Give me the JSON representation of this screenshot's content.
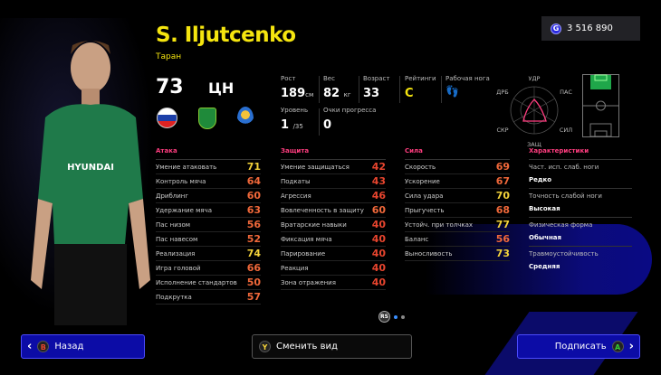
{
  "player": {
    "name": "S. Iljutcenko",
    "alias": "Таран",
    "overall": "73",
    "position": "ЦН",
    "nationality_flag": "russia-flag",
    "club_badge": "club-badge",
    "competition_badge": "champions-league-badge"
  },
  "currency": {
    "icon": "g-coin-icon",
    "amount": "3 516 890"
  },
  "info": {
    "height_label": "Рост",
    "height": "189",
    "height_unit": "см",
    "weight_label": "Вес",
    "weight": "82",
    "weight_unit": "кг",
    "age_label": "Возраст",
    "age": "33",
    "rating_label": "Рейтинги",
    "rating": "C",
    "foot_label": "Рабочая нога",
    "foot_icon": "footprints-icon",
    "level_label": "Уровень",
    "level": "1",
    "level_max": "/35",
    "progress_label": "Очки прогресса",
    "progress": "0"
  },
  "radar": {
    "labels": [
      "УДР",
      "ПАС",
      "СИЛ",
      "ЗАЩ",
      "СКР",
      "ДРБ"
    ],
    "color": "#ff3d7f"
  },
  "attack": {
    "title": "Атака",
    "rows": [
      {
        "label": "Умение атаковать",
        "value": "71"
      },
      {
        "label": "Контроль мяча",
        "value": "64"
      },
      {
        "label": "Дриблинг",
        "value": "60"
      },
      {
        "label": "Удержание мяча",
        "value": "63"
      },
      {
        "label": "Пас низом",
        "value": "56"
      },
      {
        "label": "Пас навесом",
        "value": "52"
      },
      {
        "label": "Реализация",
        "value": "74"
      },
      {
        "label": "Игра головой",
        "value": "66"
      },
      {
        "label": "Исполнение стандартов",
        "value": "50"
      },
      {
        "label": "Подкрутка",
        "value": "57"
      }
    ]
  },
  "defense": {
    "title": "Защита",
    "rows": [
      {
        "label": "Умение защищаться",
        "value": "42"
      },
      {
        "label": "Подкаты",
        "value": "43"
      },
      {
        "label": "Агрессия",
        "value": "46"
      },
      {
        "label": "Вовлеченность в защиту",
        "value": "60"
      },
      {
        "label": "Вратарские навыки",
        "value": "40"
      },
      {
        "label": "Фиксация мяча",
        "value": "40"
      },
      {
        "label": "Парирование",
        "value": "40"
      },
      {
        "label": "Реакция",
        "value": "40"
      },
      {
        "label": "Зона отражения",
        "value": "40"
      }
    ]
  },
  "power": {
    "title": "Сила",
    "rows": [
      {
        "label": "Скорость",
        "value": "69"
      },
      {
        "label": "Ускорение",
        "value": "67"
      },
      {
        "label": "Сила удара",
        "value": "70"
      },
      {
        "label": "Прыгучесть",
        "value": "68"
      },
      {
        "label": "Устойч. при толчках",
        "value": "77"
      },
      {
        "label": "Баланс",
        "value": "56"
      },
      {
        "label": "Выносливость",
        "value": "73"
      }
    ]
  },
  "characteristics": {
    "title": "Характеристики",
    "items": [
      {
        "label": "Част. исп. слаб. ноги",
        "value": "Редко"
      },
      {
        "label": "Точность слабой ноги",
        "value": "Высокая"
      },
      {
        "label": "Физическая форма",
        "value": "Обычная"
      },
      {
        "label": "Травмоустойчивость",
        "value": "Средняя"
      }
    ]
  },
  "pager": {
    "stick": "RS",
    "pages": 2,
    "current": 1
  },
  "buttons": {
    "back": {
      "key": "B",
      "label": "Назад"
    },
    "switch": {
      "key": "Y",
      "label": "Сменить вид"
    },
    "sign": {
      "key": "A",
      "label": "Подписать"
    }
  },
  "colors": {
    "accent": "#f5e50f",
    "high": "#f3d23a",
    "mid": "#f0683a",
    "low": "#e8452e",
    "button": "#0c0ca6"
  }
}
